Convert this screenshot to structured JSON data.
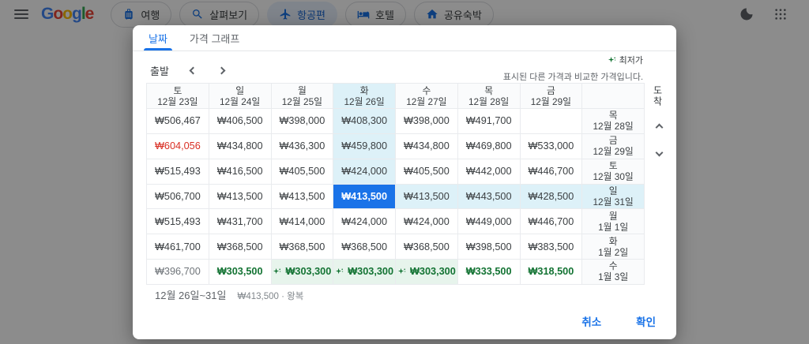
{
  "topbar": {
    "logo_letters": [
      "G",
      "o",
      "o",
      "g",
      "l",
      "e"
    ],
    "nav": [
      {
        "label": "여행",
        "icon": "luggage-icon",
        "active": false
      },
      {
        "label": "살펴보기",
        "icon": "explore-icon",
        "active": false
      },
      {
        "label": "항공편",
        "icon": "flight-icon",
        "active": true
      },
      {
        "label": "호텔",
        "icon": "hotel-icon",
        "active": false
      },
      {
        "label": "공유숙박",
        "icon": "house-icon",
        "active": false
      }
    ]
  },
  "dialog": {
    "tabs": [
      {
        "label": "날짜",
        "active": true
      },
      {
        "label": "가격 그래프",
        "active": false
      }
    ],
    "departure_label": "출발",
    "arrival_label": "도착",
    "legend": {
      "lowest": "최저가",
      "note": "표시된 다른 가격과 비교한 가격입니다."
    },
    "grid": {
      "col_headers": [
        {
          "day": "토",
          "date": "12월 23일",
          "state": ""
        },
        {
          "day": "일",
          "date": "12월 24일",
          "state": ""
        },
        {
          "day": "월",
          "date": "12월 25일",
          "state": ""
        },
        {
          "day": "화",
          "date": "12월 26일",
          "state": "colhl"
        },
        {
          "day": "수",
          "date": "12월 27일",
          "state": ""
        },
        {
          "day": "목",
          "date": "12월 28일",
          "state": ""
        },
        {
          "day": "금",
          "date": "12월 29일",
          "state": ""
        },
        {
          "day": "",
          "date": "",
          "state": ""
        }
      ],
      "rows": [
        {
          "label_day": "목",
          "label_date": "12월 28일",
          "state": "",
          "cells": [
            {
              "price": "₩506,467",
              "state": ""
            },
            {
              "price": "₩406,500",
              "state": ""
            },
            {
              "price": "₩398,000",
              "state": ""
            },
            {
              "price": "₩408,300",
              "state": "colhl"
            },
            {
              "price": "₩398,000",
              "state": ""
            },
            {
              "price": "₩491,700",
              "state": ""
            },
            {
              "price": "",
              "state": ""
            }
          ]
        },
        {
          "label_day": "금",
          "label_date": "12월 29일",
          "state": "",
          "cells": [
            {
              "price": "₩604,056",
              "state": "red"
            },
            {
              "price": "₩434,800",
              "state": ""
            },
            {
              "price": "₩436,300",
              "state": ""
            },
            {
              "price": "₩459,800",
              "state": "colhl"
            },
            {
              "price": "₩434,800",
              "state": ""
            },
            {
              "price": "₩469,800",
              "state": ""
            },
            {
              "price": "₩533,000",
              "state": ""
            }
          ]
        },
        {
          "label_day": "토",
          "label_date": "12월 30일",
          "state": "",
          "cells": [
            {
              "price": "₩515,493",
              "state": ""
            },
            {
              "price": "₩416,500",
              "state": ""
            },
            {
              "price": "₩405,500",
              "state": ""
            },
            {
              "price": "₩424,000",
              "state": "colhl"
            },
            {
              "price": "₩405,500",
              "state": ""
            },
            {
              "price": "₩442,000",
              "state": ""
            },
            {
              "price": "₩446,700",
              "state": ""
            }
          ]
        },
        {
          "label_day": "일",
          "label_date": "12월 31일",
          "state": "rowhl",
          "cells": [
            {
              "price": "₩506,700",
              "state": ""
            },
            {
              "price": "₩413,500",
              "state": ""
            },
            {
              "price": "₩413,500",
              "state": ""
            },
            {
              "price": "₩413,500",
              "state": "selected"
            },
            {
              "price": "₩413,500",
              "state": "rowhl"
            },
            {
              "price": "₩443,500",
              "state": "rowhl"
            },
            {
              "price": "₩428,500",
              "state": "rowhl"
            }
          ]
        },
        {
          "label_day": "월",
          "label_date": "1월 1일",
          "state": "",
          "cells": [
            {
              "price": "₩515,493",
              "state": ""
            },
            {
              "price": "₩431,700",
              "state": ""
            },
            {
              "price": "₩414,000",
              "state": ""
            },
            {
              "price": "₩424,000",
              "state": ""
            },
            {
              "price": "₩424,000",
              "state": ""
            },
            {
              "price": "₩449,000",
              "state": ""
            },
            {
              "price": "₩446,700",
              "state": ""
            }
          ]
        },
        {
          "label_day": "화",
          "label_date": "1월 2일",
          "state": "",
          "cells": [
            {
              "price": "₩461,700",
              "state": ""
            },
            {
              "price": "₩368,500",
              "state": ""
            },
            {
              "price": "₩368,500",
              "state": ""
            },
            {
              "price": "₩368,500",
              "state": ""
            },
            {
              "price": "₩368,500",
              "state": ""
            },
            {
              "price": "₩398,500",
              "state": ""
            },
            {
              "price": "₩383,500",
              "state": ""
            }
          ]
        },
        {
          "label_day": "수",
          "label_date": "1월 3일",
          "state": "",
          "cells": [
            {
              "price": "₩396,700",
              "state": "muted"
            },
            {
              "price": "₩303,500",
              "state": "green"
            },
            {
              "price": "₩303,300",
              "state": "greenbg",
              "icon": "lowest-price-icon"
            },
            {
              "price": "₩303,300",
              "state": "greenbg",
              "icon": "lowest-price-icon"
            },
            {
              "price": "₩303,300",
              "state": "greenbg",
              "icon": "lowest-price-icon"
            },
            {
              "price": "₩333,500",
              "state": "green"
            },
            {
              "price": "₩318,500",
              "state": "green"
            }
          ]
        }
      ]
    },
    "summary": {
      "dates": "12월 26일~31일",
      "price": "₩413,500 · 왕복"
    },
    "actions": {
      "cancel": "취소",
      "confirm": "확인"
    }
  },
  "colors": {
    "accent": "#1a73e8",
    "selected_cell": "#1a73e8",
    "path_highlight": "#ddf1f8",
    "lowest_green": "#137333",
    "lowest_green_bg": "#e7f4ec",
    "high_red": "#d93025"
  }
}
